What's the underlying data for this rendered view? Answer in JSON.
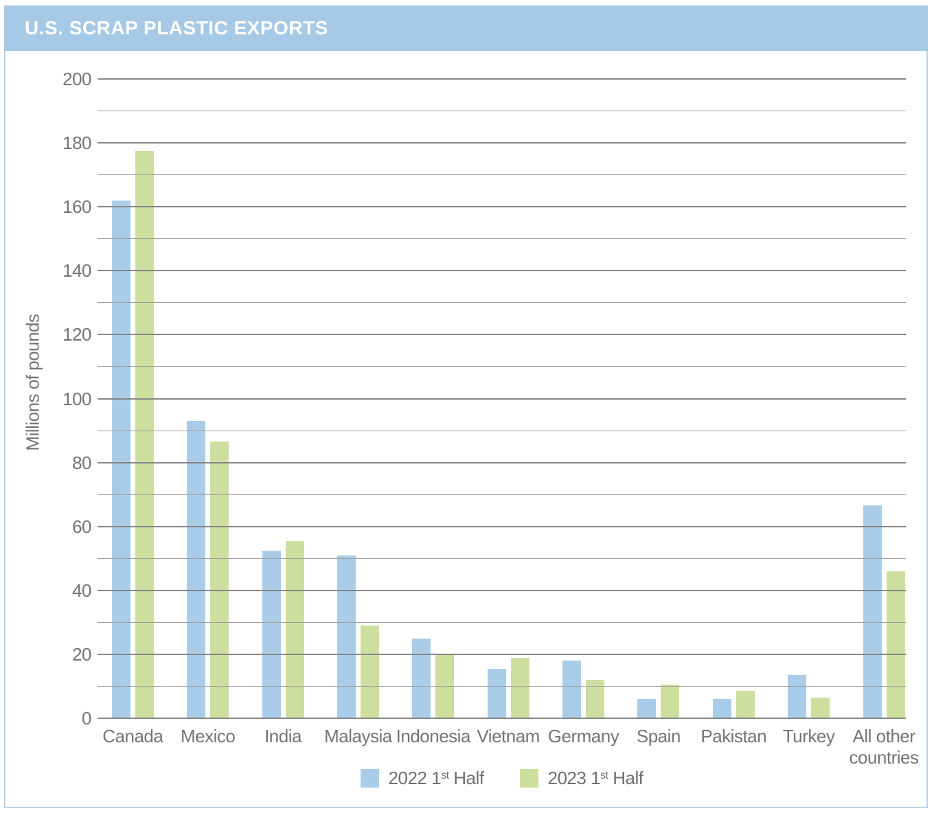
{
  "window": {
    "title": "U.S. SCRAP PLASTIC EXPORTS"
  },
  "colors": {
    "header_bg": "#a6c9e6",
    "frame_border": "#b7d5ec",
    "series_2022": "#a9cde9",
    "series_2023": "#cddf9f",
    "gridline_major": "#878787",
    "gridline_minor": "#9e9e9e",
    "axis_text": "#747474",
    "title_text": "#ffffff"
  },
  "legend": {
    "items": [
      {
        "prefix": "2022 1",
        "sup": "st",
        "suffix": " Half",
        "color": "#a9cde9"
      },
      {
        "prefix": "2023 1",
        "sup": "st",
        "suffix": " Half",
        "color": "#cddf9f"
      }
    ]
  },
  "chart_data": {
    "type": "bar",
    "title": "U.S. SCRAP PLASTIC EXPORTS",
    "xlabel": "",
    "ylabel": "Millions of pounds",
    "ylim": [
      0,
      200
    ],
    "grid_step": 10,
    "tick_step": 20,
    "grid": "on",
    "legend_position": "bottom",
    "categories": [
      "Canada",
      "Mexico",
      "India",
      "Malaysia",
      "Indonesia",
      "Vietnam",
      "Germany",
      "Spain",
      "Pakistan",
      "Turkey",
      "All other countries"
    ],
    "series": [
      {
        "name": "2022 1st Half",
        "color": "#a9cde9",
        "values": [
          162,
          93,
          52.5,
          51,
          25,
          15.5,
          18,
          6,
          6,
          13.5,
          66.5
        ]
      },
      {
        "name": "2023 1st Half",
        "color": "#cddf9f",
        "values": [
          177.5,
          86.5,
          55.5,
          29,
          20,
          19,
          12,
          10.5,
          8.5,
          6.5,
          46
        ]
      }
    ]
  }
}
